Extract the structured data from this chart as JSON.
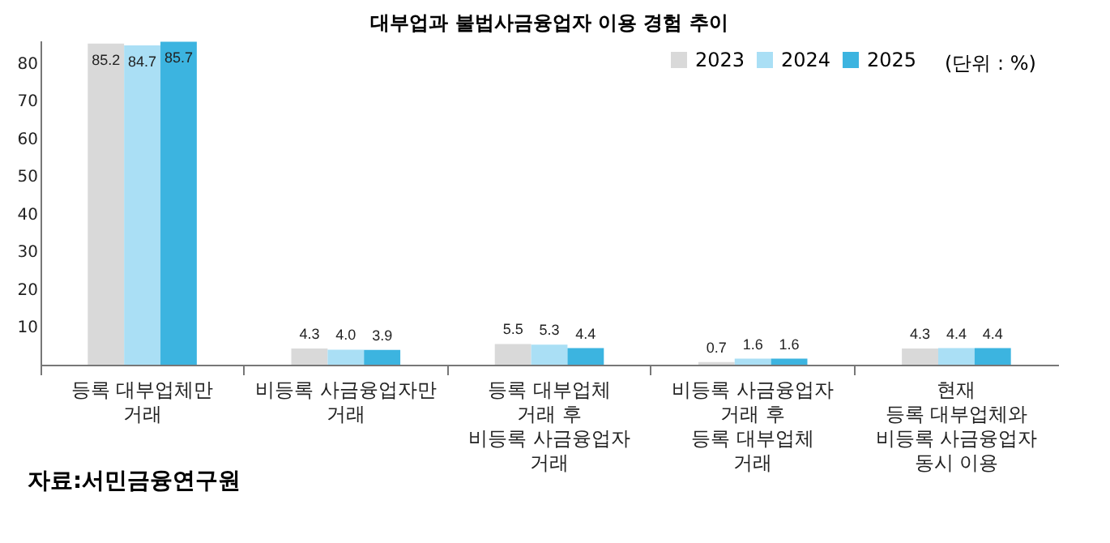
{
  "chart_data": {
    "type": "bar",
    "title": "대부업과 불법사금융업자 이용 경험 추이",
    "categories": [
      "등록 대부업체만\n거래",
      "비등록 사금융업자만\n거래",
      "등록 대부업체\n거래 후\n비등록 사금융업자\n거래",
      "비등록 사금융업자\n거래 후\n등록 대부업체\n거래",
      "현재\n등록 대부업체와\n비등록 사금융업자\n동시 이용"
    ],
    "series": [
      {
        "name": "2023",
        "color": "#d9d9d9",
        "values": [
          85.2,
          4.3,
          5.5,
          0.7,
          4.3
        ],
        "value_labels": [
          "85.2",
          "4.3",
          "5.5",
          "0.7",
          "4.3"
        ]
      },
      {
        "name": "2024",
        "color": "#aadff5",
        "values": [
          84.7,
          4.0,
          5.3,
          1.6,
          4.4
        ],
        "value_labels": [
          "84.7",
          "4.0",
          "5.3",
          "1.6",
          "4.4"
        ]
      },
      {
        "name": "2025",
        "color": "#3cb4e0",
        "values": [
          85.7,
          3.9,
          4.4,
          1.6,
          4.4
        ],
        "value_labels": [
          "85.7",
          "3.9",
          "4.4",
          "1.6",
          "4.4"
        ]
      }
    ],
    "ylim": [
      0,
      86
    ],
    "yticks": [
      10,
      20,
      30,
      40,
      50,
      60,
      70,
      80
    ],
    "grid": false,
    "legend": "top right",
    "annotations": [
      "(단위 : %)",
      "자료:서민금융연구원"
    ]
  }
}
